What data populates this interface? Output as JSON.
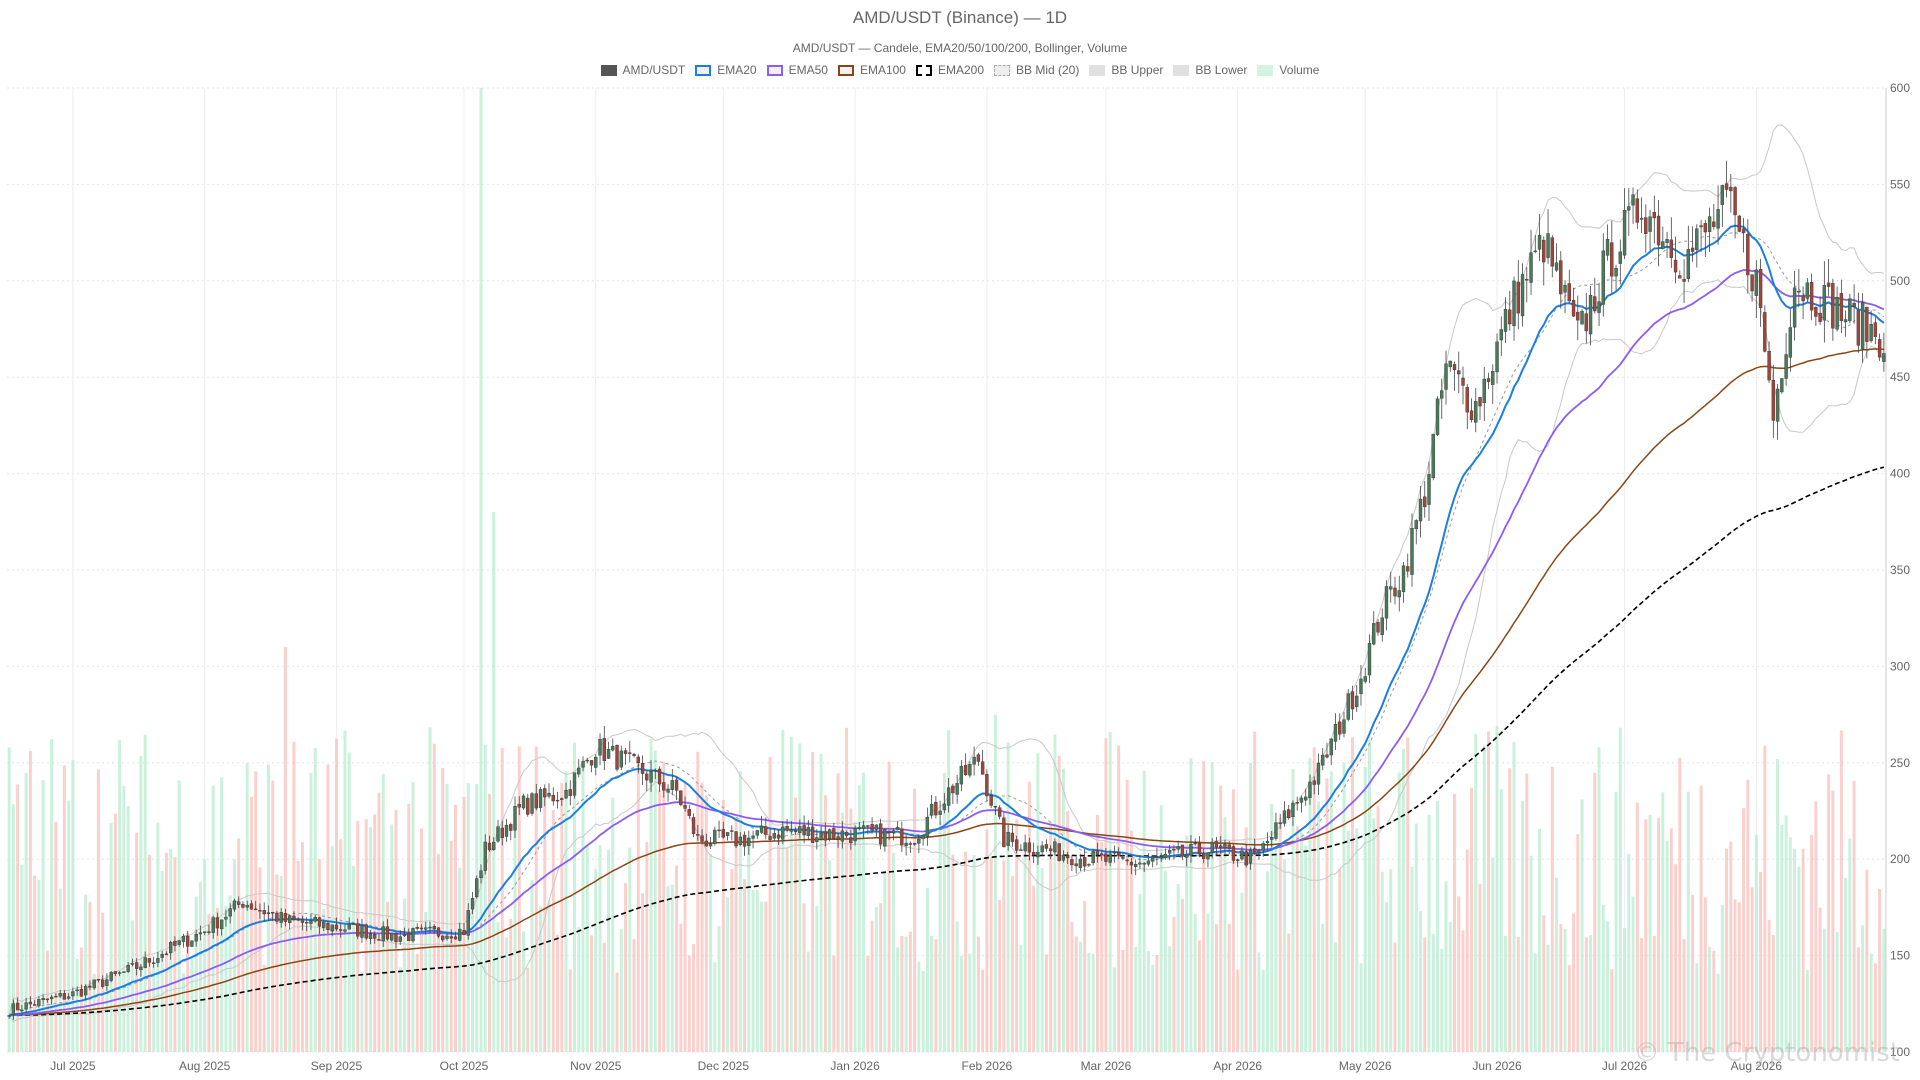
{
  "chart_data": {
    "type": "candlestick",
    "title": "AMD/USDT (Binance) — 1D",
    "subtitle": "AMD/USDT — Candele, EMA20/50/100/200, Bollinger, Volume",
    "legend": [
      {
        "label": "AMD/USDT",
        "color": "#555555",
        "style": "fill"
      },
      {
        "label": "EMA20",
        "color": "#1a7fe0",
        "style": "box"
      },
      {
        "label": "EMA50",
        "color": "#8b5cf6",
        "style": "box"
      },
      {
        "label": "EMA100",
        "color": "#8b4513",
        "style": "box"
      },
      {
        "label": "EMA200",
        "color": "#000000",
        "style": "dashed"
      },
      {
        "label": "BB Mid (20)",
        "color": "#aaaaaa",
        "style": "dotted"
      },
      {
        "label": "BB Upper",
        "color": "#cccccc",
        "style": "fill"
      },
      {
        "label": "BB Lower",
        "color": "#cccccc",
        "style": "fill"
      },
      {
        "label": "Volume",
        "color": "#b7ecd0",
        "style": "fill"
      }
    ],
    "x_tick_labels": [
      "Jul 2025",
      "Aug 2025",
      "Sep 2025",
      "Oct 2025",
      "Nov 2025",
      "Dec 2025",
      "Jan 2026",
      "Feb 2026",
      "Mar 2026",
      "Apr 2026",
      "May 2026",
      "Jun 2026",
      "Jul 2026",
      "Aug 2026"
    ],
    "y_ticks": [
      100,
      150,
      200,
      250,
      300,
      350,
      400,
      450,
      500,
      550,
      600
    ],
    "ylim": [
      100,
      600
    ],
    "x_range": [
      "2025-06-16",
      "2026-08-31"
    ],
    "grid": true,
    "legend_position": "top",
    "price_anchors": [
      [
        "2025-06-16",
        122
      ],
      [
        "2025-07-01",
        130
      ],
      [
        "2025-07-15",
        143
      ],
      [
        "2025-08-01",
        163
      ],
      [
        "2025-08-10",
        178
      ],
      [
        "2025-08-20",
        168
      ],
      [
        "2025-09-01",
        165
      ],
      [
        "2025-09-15",
        160
      ],
      [
        "2025-10-01",
        163
      ],
      [
        "2025-10-06",
        205
      ],
      [
        "2025-10-15",
        228
      ],
      [
        "2025-10-25",
        235
      ],
      [
        "2025-11-01",
        258
      ],
      [
        "2025-11-10",
        248
      ],
      [
        "2025-11-20",
        235
      ],
      [
        "2025-11-25",
        210
      ],
      [
        "2025-12-05",
        210
      ],
      [
        "2025-12-15",
        215
      ],
      [
        "2025-12-25",
        213
      ],
      [
        "2026-01-05",
        213
      ],
      [
        "2026-01-15",
        212
      ],
      [
        "2026-01-23",
        235
      ],
      [
        "2026-01-30",
        252
      ],
      [
        "2026-02-05",
        210
      ],
      [
        "2026-02-15",
        205
      ],
      [
        "2026-02-25",
        200
      ],
      [
        "2026-03-10",
        198
      ],
      [
        "2026-03-25",
        205
      ],
      [
        "2026-04-05",
        200
      ],
      [
        "2026-04-20",
        245
      ],
      [
        "2026-04-30",
        295
      ],
      [
        "2026-05-05",
        330
      ],
      [
        "2026-05-10",
        350
      ],
      [
        "2026-05-15",
        390
      ],
      [
        "2026-05-20",
        455
      ],
      [
        "2026-05-27",
        435
      ],
      [
        "2026-06-05",
        490
      ],
      [
        "2026-06-12",
        520
      ],
      [
        "2026-06-20",
        470
      ],
      [
        "2026-06-27",
        510
      ],
      [
        "2026-07-05",
        540
      ],
      [
        "2026-07-15",
        510
      ],
      [
        "2026-07-25",
        540
      ],
      [
        "2026-08-01",
        500
      ],
      [
        "2026-08-05",
        430
      ],
      [
        "2026-08-10",
        500
      ],
      [
        "2026-08-20",
        485
      ],
      [
        "2026-08-31",
        470
      ]
    ],
    "volume_ylim": [
      0,
      1000
    ],
    "volume_spikes": [
      [
        "2025-08-20",
        420
      ],
      [
        "2025-10-05",
        1000
      ],
      [
        "2025-10-08",
        560
      ],
      [
        "2026-02-03",
        350
      ]
    ],
    "indicators": {
      "ema": [
        20,
        50,
        100,
        200
      ],
      "bollinger": {
        "period": 20,
        "stddev": 2
      },
      "ema200_end": 362
    }
  },
  "watermark": "© The Cryptonomist"
}
